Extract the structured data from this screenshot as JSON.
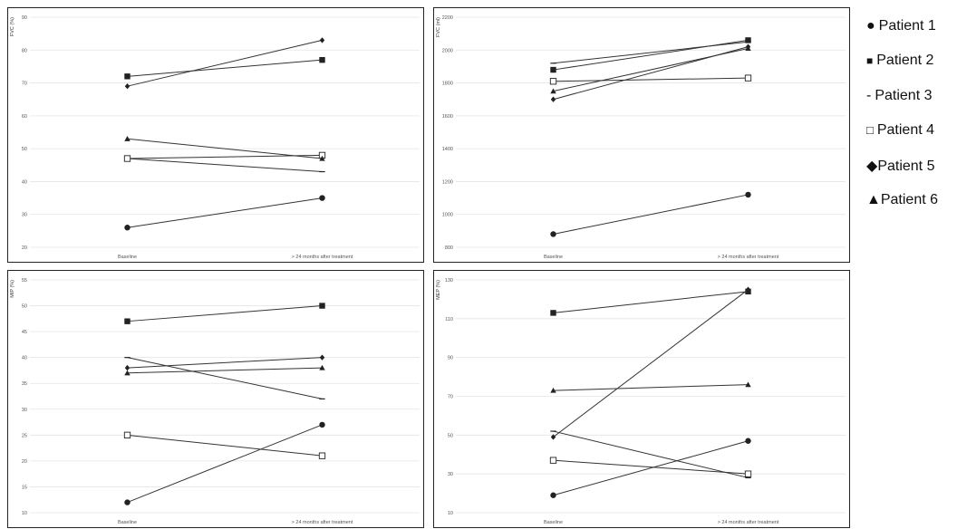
{
  "legend": {
    "items": [
      {
        "symbol": "●",
        "label": "Patient 1",
        "marker": "circle"
      },
      {
        "symbol": "■",
        "label": "Patient 2",
        "marker": "square"
      },
      {
        "symbol": "-",
        "label": "Patient 3",
        "marker": "dash"
      },
      {
        "symbol": "□",
        "label": "Patient 4",
        "marker": "open-square"
      },
      {
        "symbol": "◆",
        "label": "Patient 5",
        "marker": "diamond"
      },
      {
        "symbol": "▲",
        "label": "Patient 6",
        "marker": "triangle"
      }
    ]
  },
  "chart_data": [
    {
      "type": "line",
      "ylabel": "FVC (%)",
      "categories": [
        "Baseline",
        "> 24 months after treatment"
      ],
      "ylim": [
        20,
        90
      ],
      "yticks": [
        20,
        30,
        40,
        50,
        60,
        70,
        80,
        90
      ],
      "grid": true,
      "series": [
        {
          "name": "Patient 1",
          "marker": "circle",
          "values": [
            26,
            35
          ]
        },
        {
          "name": "Patient 2",
          "marker": "square",
          "values": [
            72,
            77
          ]
        },
        {
          "name": "Patient 3",
          "marker": "dash",
          "values": [
            47,
            43
          ]
        },
        {
          "name": "Patient 4",
          "marker": "open-square",
          "values": [
            47,
            48
          ]
        },
        {
          "name": "Patient 5",
          "marker": "diamond",
          "values": [
            69,
            83
          ]
        },
        {
          "name": "Patient 6",
          "marker": "triangle",
          "values": [
            53,
            47
          ]
        }
      ]
    },
    {
      "type": "line",
      "ylabel": "FVC (ml)",
      "categories": [
        "Baseline",
        "> 24 months after treatment"
      ],
      "ylim": [
        800,
        2200
      ],
      "yticks": [
        800,
        1000,
        1200,
        1400,
        1600,
        1800,
        2000,
        2200
      ],
      "grid": true,
      "series": [
        {
          "name": "Patient 1",
          "marker": "circle",
          "values": [
            880,
            1120
          ]
        },
        {
          "name": "Patient 2",
          "marker": "square",
          "values": [
            1880,
            2060
          ]
        },
        {
          "name": "Patient 3",
          "marker": "dash",
          "values": [
            1920,
            2050
          ]
        },
        {
          "name": "Patient 4",
          "marker": "open-square",
          "values": [
            1810,
            1830
          ]
        },
        {
          "name": "Patient 5",
          "marker": "diamond",
          "values": [
            1700,
            2020
          ]
        },
        {
          "name": "Patient 6",
          "marker": "triangle",
          "values": [
            1750,
            2010
          ]
        }
      ]
    },
    {
      "type": "line",
      "ylabel": "MIP (%)",
      "categories": [
        "Baseline",
        "> 24 months after treatment"
      ],
      "ylim": [
        10,
        55
      ],
      "yticks": [
        10,
        15,
        20,
        25,
        30,
        35,
        40,
        45,
        50,
        55
      ],
      "grid": true,
      "series": [
        {
          "name": "Patient 1",
          "marker": "circle",
          "values": [
            12,
            27
          ]
        },
        {
          "name": "Patient 2",
          "marker": "square",
          "values": [
            47,
            50
          ]
        },
        {
          "name": "Patient 3",
          "marker": "dash",
          "values": [
            40,
            32
          ]
        },
        {
          "name": "Patient 4",
          "marker": "open-square",
          "values": [
            25,
            21
          ]
        },
        {
          "name": "Patient 5",
          "marker": "diamond",
          "values": [
            38,
            40
          ]
        },
        {
          "name": "Patient 6",
          "marker": "triangle",
          "values": [
            37,
            38
          ]
        }
      ]
    },
    {
      "type": "line",
      "ylabel": "MEP (%)",
      "categories": [
        "Baseline",
        "> 24 months after treatment"
      ],
      "ylim": [
        10,
        130
      ],
      "yticks": [
        10,
        30,
        50,
        70,
        90,
        110,
        130
      ],
      "grid": true,
      "series": [
        {
          "name": "Patient 1",
          "marker": "circle",
          "values": [
            19,
            47
          ]
        },
        {
          "name": "Patient 2",
          "marker": "square",
          "values": [
            113,
            124
          ]
        },
        {
          "name": "Patient 3",
          "marker": "dash",
          "values": [
            52,
            28
          ]
        },
        {
          "name": "Patient 4",
          "marker": "open-square",
          "values": [
            37,
            30
          ]
        },
        {
          "name": "Patient 5",
          "marker": "diamond",
          "values": [
            49,
            125
          ]
        },
        {
          "name": "Patient 6",
          "marker": "triangle",
          "values": [
            73,
            76
          ]
        }
      ]
    }
  ]
}
